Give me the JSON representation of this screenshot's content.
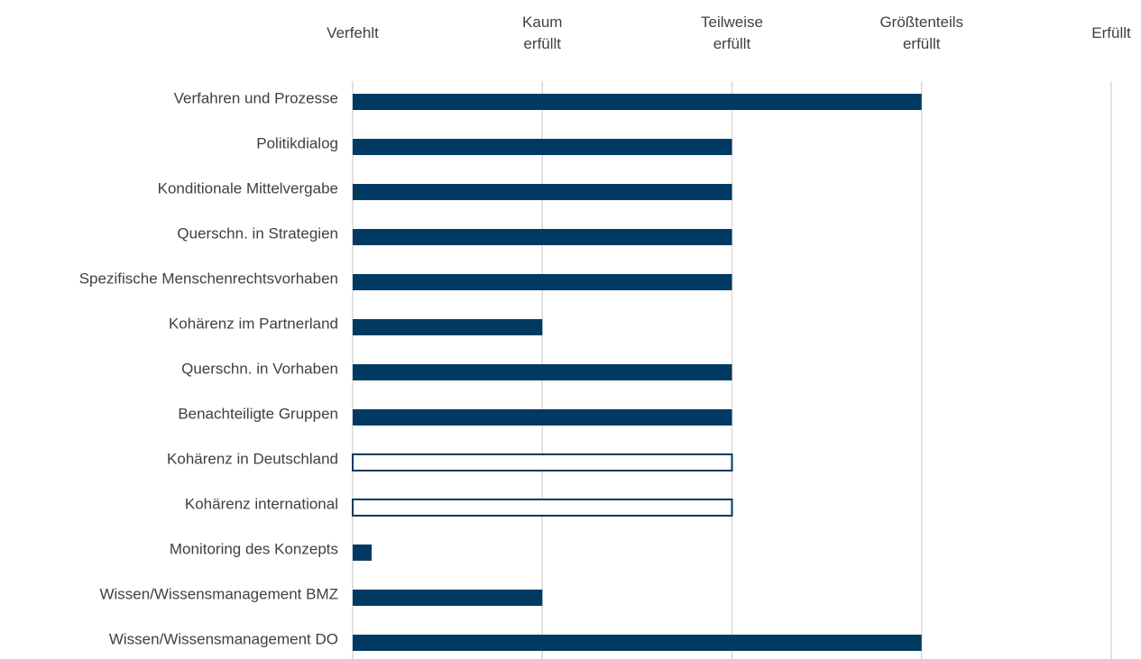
{
  "chart_data": {
    "type": "bar",
    "orientation": "horizontal",
    "categories": [
      "Verfahren und Prozesse",
      "Politikdialog",
      "Konditionale Mittelvergabe",
      "Querschn. in Strategien",
      "Spezifische Menschenrechtsvorhaben",
      "Kohärenz im Partnerland",
      "Querschn. in Vorhaben",
      "Benachteiligte Gruppen",
      "Kohärenz in Deutschland",
      "Kohärenz international",
      "Monitoring des Konzepts",
      "Wissen/Wissensmanagement BMZ",
      "Wissen/Wissensmanagement DO"
    ],
    "values": [
      3,
      2,
      2,
      2,
      2,
      1,
      2,
      2,
      2,
      2,
      0.1,
      1,
      3
    ],
    "bar_styles": [
      "filled",
      "filled",
      "filled",
      "filled",
      "filled",
      "filled",
      "filled",
      "filled",
      "outline",
      "outline",
      "filled",
      "filled",
      "filled"
    ],
    "color": "#003a63",
    "xlim": [
      0,
      4
    ],
    "xticks": [
      {
        "value": 0,
        "label": "Verfehlt"
      },
      {
        "value": 1,
        "label": "Kaum\nerfüllt"
      },
      {
        "value": 2,
        "label": "Teilweise\nerfüllt"
      },
      {
        "value": 3,
        "label": "Größtenteils\nerfüllt"
      },
      {
        "value": 4,
        "label": "Erfüllt"
      }
    ],
    "grid": true
  }
}
